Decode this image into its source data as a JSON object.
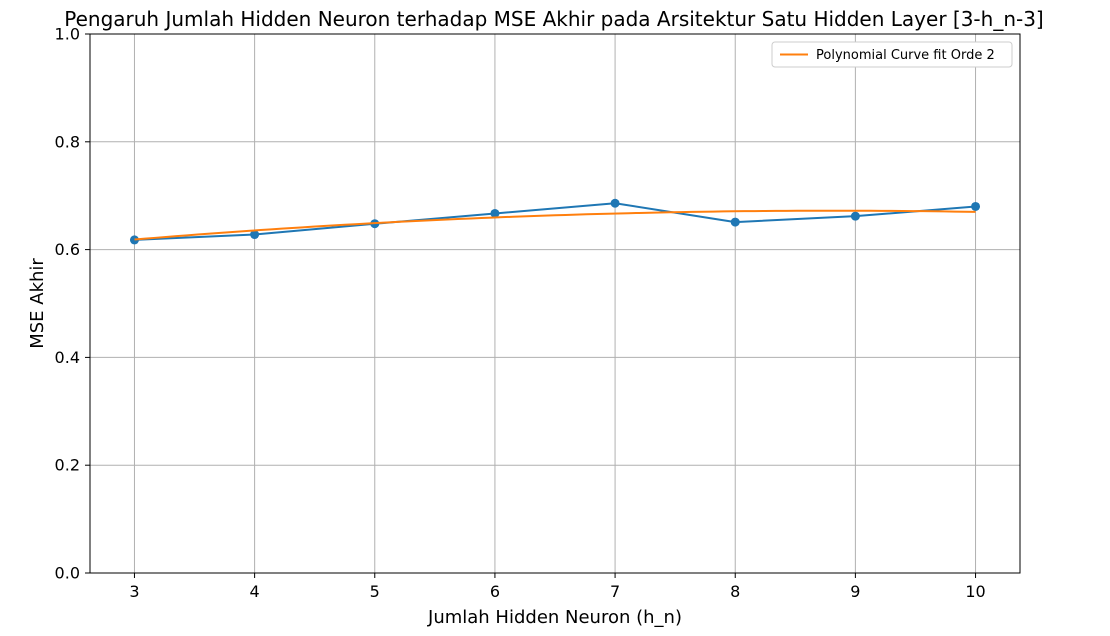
{
  "chart_data": {
    "type": "line",
    "title": "Pengaruh Jumlah Hidden Neuron terhadap MSE Akhir pada Arsitektur Satu Hidden Layer [3-h_n-3]",
    "xlabel": "Jumlah Hidden Neuron (h_n)",
    "ylabel": "MSE Akhir",
    "x": [
      3,
      4,
      5,
      6,
      7,
      8,
      9,
      10
    ],
    "x_tick_labels": [
      "3",
      "4",
      "5",
      "6",
      "7",
      "8",
      "9",
      "10"
    ],
    "xlim": [
      2.63,
      10.37
    ],
    "ylim": [
      0,
      1
    ],
    "y_ticks": [
      0,
      0.2,
      0.4,
      0.6,
      0.8,
      1.0
    ],
    "y_tick_labels": [
      "0.0",
      "0.2",
      "0.4",
      "0.6",
      "0.8",
      "1.0"
    ],
    "grid": true,
    "legend_position": "top-right",
    "series": [
      {
        "values": [
          0.618,
          0.628,
          0.648,
          0.667,
          0.686,
          0.651,
          0.662,
          0.68
        ],
        "color": "#1f77b4",
        "markers": true
      },
      {
        "name": "Polynomial Curve fit Orde 2",
        "values": [
          0.619,
          0.635,
          0.649,
          0.66,
          0.667,
          0.671,
          0.672,
          0.67
        ],
        "color": "#ff7f0e",
        "markers": false,
        "smooth": true
      }
    ]
  }
}
